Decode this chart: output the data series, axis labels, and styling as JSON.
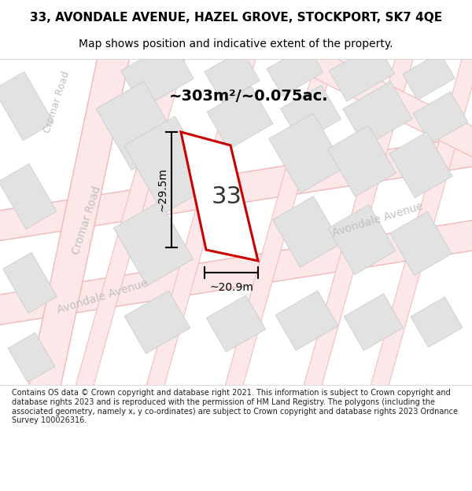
{
  "title": "33, AVONDALE AVENUE, HAZEL GROVE, STOCKPORT, SK7 4QE",
  "subtitle": "Map shows position and indicative extent of the property.",
  "footer": "Contains OS data © Crown copyright and database right 2021. This information is subject to Crown copyright and database rights 2023 and is reproduced with the permission of HM Land Registry. The polygons (including the associated geometry, namely x, y co-ordinates) are subject to Crown copyright and database rights 2023 Ordnance Survey 100026316.",
  "area_text": "~303m²/~0.075ac.",
  "width_label": "~20.9m",
  "height_label": "~29.5m",
  "number_label": "33",
  "map_bg": "#efefef",
  "road_fill": "#fce8e8",
  "road_edge": "#f0b8b8",
  "block_fill": "#e2e2e2",
  "block_edge": "#cccccc",
  "plot_fill": "#ffffff",
  "plot_stroke": "#cc0000",
  "street_label_color": "#c0c0c0",
  "dim_color": "#000000",
  "title_color": "#000000",
  "footer_color": "#222222",
  "title_fontsize": 11,
  "subtitle_fontsize": 10,
  "area_fontsize": 14,
  "dim_fontsize": 10,
  "street_fontsize": 10,
  "number_fontsize": 22
}
